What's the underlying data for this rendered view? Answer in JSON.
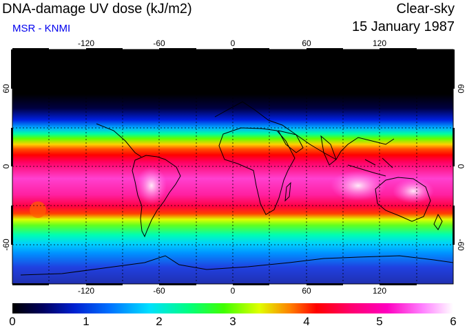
{
  "header": {
    "title": "DNA-damage UV dose (kJ/m2)",
    "source": "MSR - KNMI",
    "condition": "Clear-sky",
    "date": "15 January 1987"
  },
  "colors": {
    "source_text": "#0000ee",
    "scale": [
      "#000000",
      "#000060",
      "#0020d0",
      "#0070ff",
      "#00e0ff",
      "#00ff80",
      "#40ff00",
      "#e0ff00",
      "#ff8000",
      "#ff0000",
      "#ff0070",
      "#ff00c0",
      "#ff80ff",
      "#ffffff"
    ]
  },
  "map": {
    "projection": "equirectangular",
    "lon_range": [
      -180,
      180
    ],
    "lat_range": [
      -90,
      90
    ],
    "lon_ticks": [
      "-120",
      "-60",
      "0",
      "60",
      "120"
    ],
    "lat_ticks_left": [
      "60",
      "0",
      "-60"
    ],
    "lat_ticks_right": [
      "60",
      "0",
      "-60"
    ]
  },
  "colorbar": {
    "min": 0,
    "max": 6,
    "labels": [
      "0",
      "1",
      "2",
      "3",
      "4",
      "5",
      "6"
    ]
  }
}
